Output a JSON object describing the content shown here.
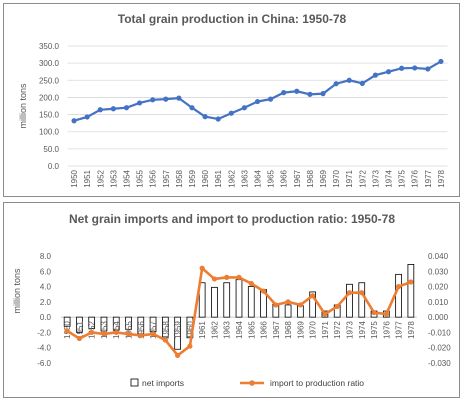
{
  "chart_data": [
    {
      "type": "line",
      "title": "Total grain production in China: 1950-78",
      "ylabel": "million tons",
      "ylim": [
        0,
        350
      ],
      "yticks": [
        "0.0",
        "50.0",
        "100.0",
        "150.0",
        "200.0",
        "250.0",
        "300.0",
        "350.0"
      ],
      "grid": true,
      "legend": "none",
      "x": [
        "1950",
        "1951",
        "1952",
        "1953",
        "1954",
        "1955",
        "1956",
        "1957",
        "1958",
        "1959",
        "1960",
        "1961",
        "1962",
        "1963",
        "1964",
        "1965",
        "1966",
        "1967",
        "1968",
        "1969",
        "1970",
        "1971",
        "1972",
        "1973",
        "1974",
        "1975",
        "1976",
        "1977",
        "1978"
      ],
      "series": [
        {
          "type": "line",
          "color": "#4472C4",
          "values": [
            132,
            143,
            164,
            167,
            170,
            184,
            193,
            195,
            198,
            170,
            144,
            137,
            154,
            170,
            188,
            195,
            214,
            218,
            209,
            211,
            240,
            250,
            241,
            265,
            275,
            285,
            286,
            283,
            305
          ]
        }
      ]
    },
    {
      "type": "bar",
      "title": "Net grain imports and import to production ratio: 1950-78",
      "ylabel": "million tons",
      "ylim": [
        -6,
        8
      ],
      "yticks": [
        "8.0",
        "6.0",
        "4.0",
        "2.0",
        "0.0",
        "-2.0",
        "-4.0",
        "-6.0"
      ],
      "y2lim": [
        -0.03,
        0.04
      ],
      "y2ticks": [
        "0.040",
        "0.030",
        "0.020",
        "0.010",
        "0.000",
        "-0.010",
        "-0.020",
        "-0.030"
      ],
      "grid": false,
      "legend": "bottom",
      "x": [
        "1950",
        "1951",
        "1952",
        "1953",
        "1954",
        "1955",
        "1956",
        "1957",
        "1958",
        "1959",
        "1960",
        "1961",
        "1962",
        "1963",
        "1964",
        "1965",
        "1966",
        "1967",
        "1968",
        "1969",
        "1970",
        "1971",
        "1972",
        "1973",
        "1974",
        "1975",
        "1976",
        "1977",
        "1978"
      ],
      "series": [
        {
          "name": "net imports",
          "type": "bar",
          "axis": "left",
          "color": "#FFFFFF",
          "edge_color": "#000000",
          "values": [
            -1.2,
            -2.0,
            -1.5,
            -1.8,
            -1.7,
            -1.6,
            -2.2,
            -1.9,
            -2.7,
            -4.2,
            -2.7,
            4.5,
            3.9,
            4.5,
            4.9,
            4.0,
            3.6,
            1.7,
            1.6,
            1.5,
            3.3,
            0.8,
            1.6,
            4.3,
            4.5,
            0.8,
            0.8,
            5.6,
            6.9
          ]
        },
        {
          "name": "import to production ratio",
          "type": "line",
          "axis": "right",
          "color": "#ED7D31",
          "values": [
            -0.009,
            -0.014,
            -0.01,
            -0.011,
            -0.01,
            -0.011,
            -0.012,
            -0.011,
            -0.015,
            -0.025,
            -0.019,
            0.032,
            0.025,
            0.026,
            0.026,
            0.022,
            0.017,
            0.008,
            0.01,
            0.008,
            0.014,
            0.002,
            0.007,
            0.016,
            0.016,
            0.003,
            0.002,
            0.02,
            0.023
          ]
        }
      ]
    }
  ]
}
